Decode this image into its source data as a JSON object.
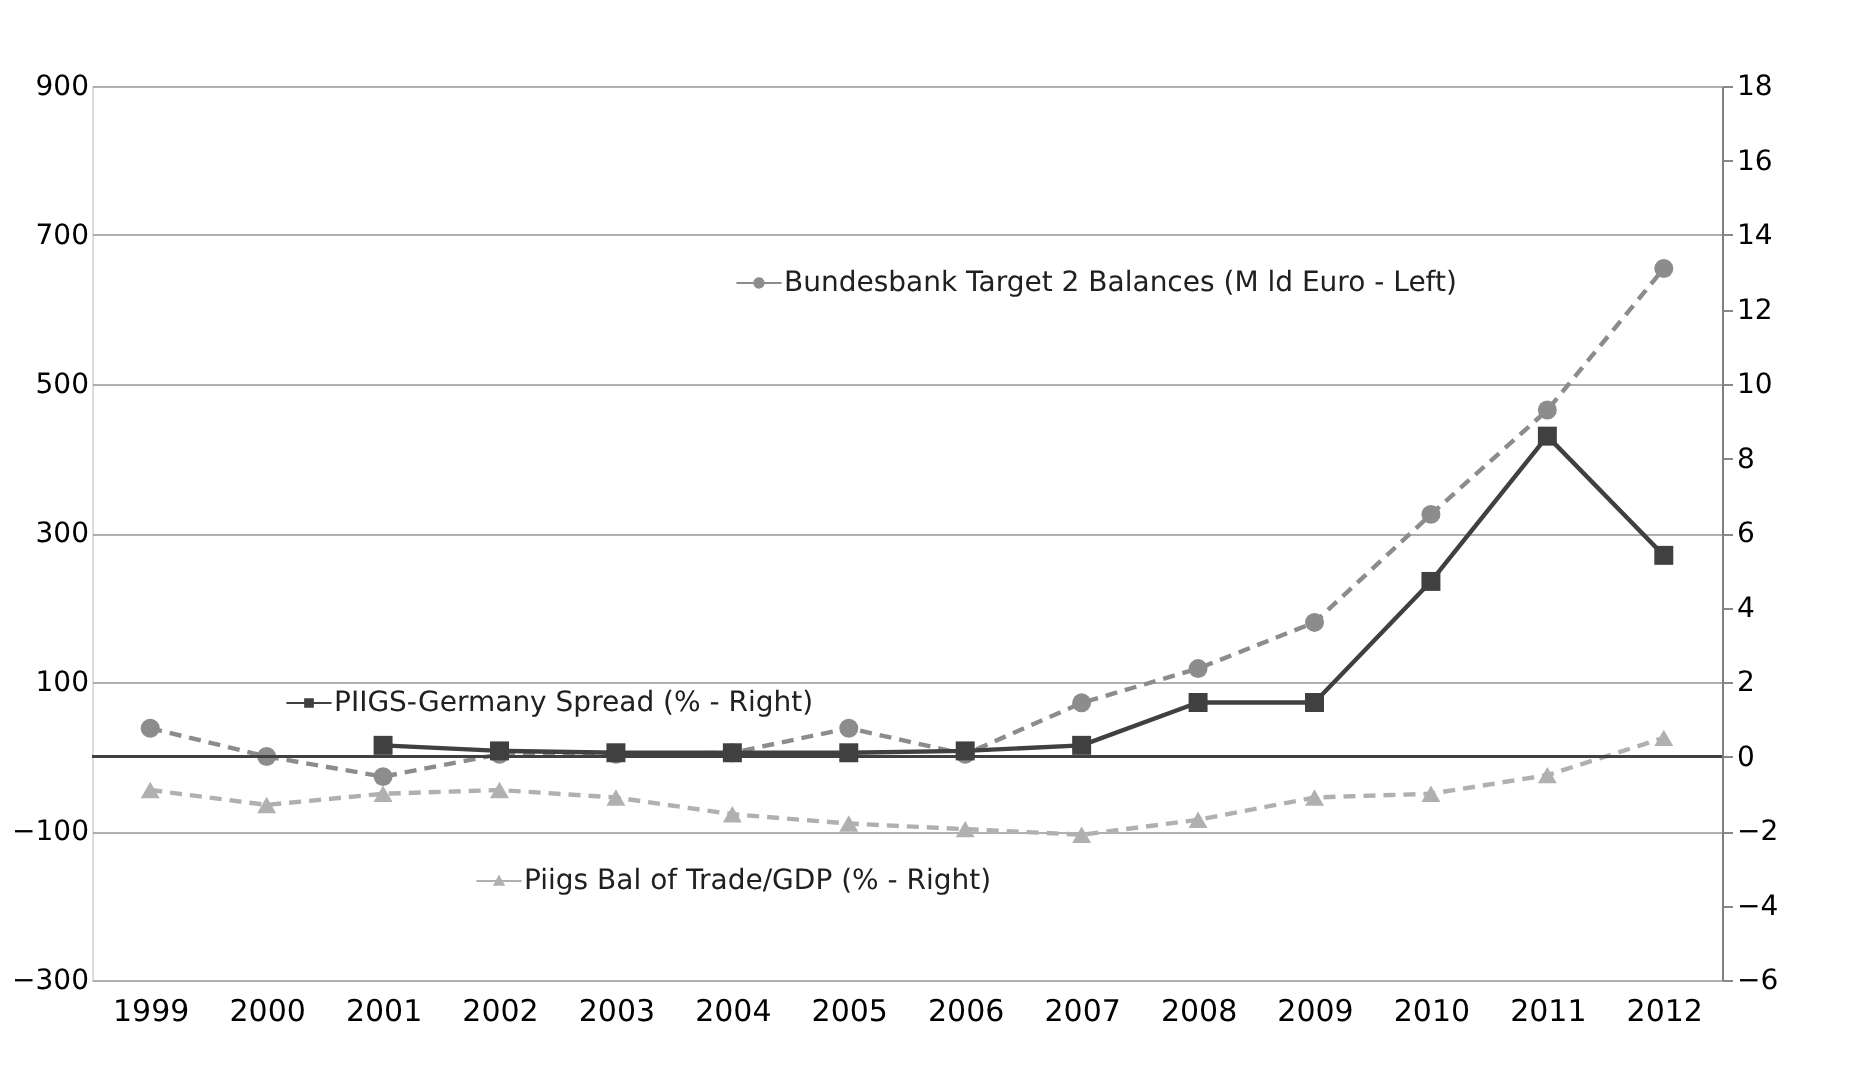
{
  "chart_data": {
    "type": "line",
    "categories": [
      "1999",
      "2000",
      "2001",
      "2002",
      "2003",
      "2004",
      "2005",
      "2006",
      "2007",
      "2008",
      "2009",
      "2010",
      "2011",
      "2012"
    ],
    "series": [
      {
        "name": "Bundesbank Target 2 Balances (M ld Euro - Left)",
        "color": "#8c8c8c",
        "marker": "circle",
        "line_style": "dashed",
        "axis": "y",
        "values": [
          38,
          0,
          -27,
          3,
          3,
          5,
          38,
          3,
          72,
          118,
          180,
          325,
          465,
          655
        ]
      },
      {
        "name": "PIIGS-Germany Spread (% - Right)",
        "color": "#404040",
        "marker": "square",
        "line_style": "solid",
        "axis": "y2",
        "values": [
          null,
          null,
          0.3,
          0.15,
          0.1,
          0.1,
          0.1,
          0.15,
          0.3,
          1.45,
          1.45,
          4.7,
          8.6,
          5.4
        ]
      },
      {
        "name": "Piigs Bal of Trade/GDP (% - Right)",
        "color": "#b0b0b0",
        "marker": "triangle",
        "line_style": "dashed",
        "axis": "y2",
        "values": [
          -0.9,
          -1.3,
          -1.0,
          -0.9,
          -1.1,
          -1.55,
          -1.8,
          -1.95,
          -2.1,
          -1.7,
          -1.1,
          -1.0,
          -0.5,
          0.5
        ]
      }
    ],
    "ylim": [
      -300,
      900
    ],
    "yticks": [
      -300,
      -100,
      100,
      300,
      500,
      700,
      900
    ],
    "y2lim": [
      -6,
      18
    ],
    "y2ticks": [
      -6,
      -4,
      -2,
      0,
      2,
      4,
      6,
      8,
      10,
      12,
      14,
      16,
      18
    ],
    "ref_lines": [
      {
        "axis": "y",
        "value": 0,
        "color": "#404040"
      }
    ],
    "grid": "y",
    "legend": "bottom left"
  }
}
